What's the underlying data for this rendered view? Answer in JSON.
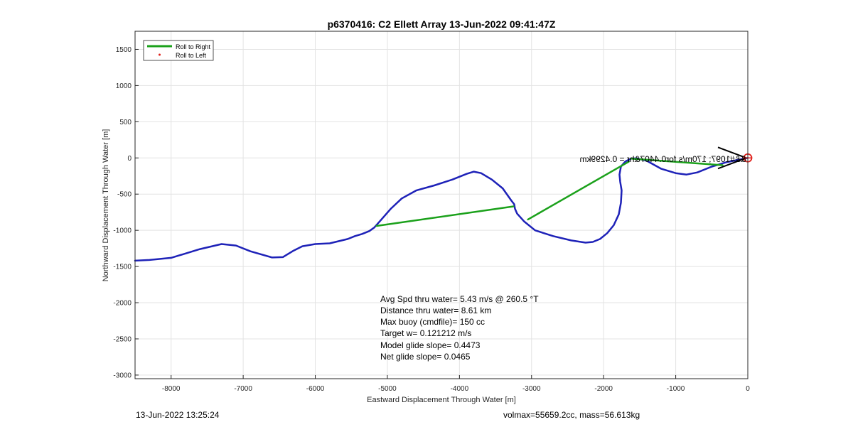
{
  "chart_data": {
    "type": "line",
    "title": "p6370416: C2 Ellett Array 13-Jun-2022 09:41:47Z",
    "xlabel": "Eastward Displacement Through Water [m]",
    "ylabel": "Northward Displacement Through Water [m]",
    "xlim": [
      -8500,
      0
    ],
    "ylim": [
      -3050,
      1750
    ],
    "xticks": [
      -8000,
      -7000,
      -6000,
      -5000,
      -4000,
      -3000,
      -2000,
      -1000,
      0
    ],
    "yticks": [
      -3000,
      -2500,
      -2000,
      -1500,
      -1000,
      -500,
      0,
      500,
      1000,
      1500
    ],
    "grid": true,
    "legend_position": "top-left",
    "legend": [
      {
        "label": "Roll to Right",
        "color": "#1ba11b"
      },
      {
        "label": "Roll to Left",
        "color": "#e0201a"
      }
    ],
    "series": [
      {
        "color": "#1e22b8",
        "x": [
          -8500,
          -8300,
          -8000,
          -7800,
          -7600,
          -7300,
          -7100,
          -6900,
          -6600,
          -6450,
          -6300,
          -6180,
          -6000,
          -5800,
          -5550,
          -5450,
          -5350,
          -5250,
          -5180,
          -5100,
          -4950,
          -4800,
          -4600,
          -4350,
          -4100,
          -3900,
          -3800,
          -3700,
          -3550,
          -3400,
          -3280,
          -3240,
          -3230,
          -3200,
          -3100,
          -2950,
          -2700,
          -2450,
          -2250,
          -2150,
          -2050,
          -1950,
          -1860,
          -1790,
          -1760,
          -1750,
          -1770,
          -1780,
          -1760,
          -1700,
          -1620,
          -1540,
          -1400,
          -1200,
          -1000,
          -850,
          -700,
          -500,
          -300,
          0
        ],
        "y": [
          -1420,
          -1410,
          -1380,
          -1320,
          -1260,
          -1190,
          -1210,
          -1290,
          -1375,
          -1370,
          -1280,
          -1220,
          -1190,
          -1180,
          -1120,
          -1080,
          -1050,
          -1010,
          -960,
          -870,
          -700,
          -560,
          -450,
          -380,
          -300,
          -220,
          -190,
          -210,
          -300,
          -420,
          -590,
          -640,
          -700,
          -770,
          -880,
          -1000,
          -1080,
          -1140,
          -1170,
          -1160,
          -1120,
          -1040,
          -930,
          -780,
          -620,
          -450,
          -330,
          -230,
          -120,
          -50,
          -10,
          -5,
          -40,
          -150,
          -210,
          -230,
          -200,
          -120,
          -60,
          0
        ]
      },
      {
        "color": "#1ba11b",
        "x": [
          -5150,
          -3250
        ],
        "y": [
          -940,
          -670
        ]
      },
      {
        "color": "#1ba11b",
        "x": [
          -3050,
          -1650
        ],
        "y": [
          -850,
          -50
        ]
      },
      {
        "color": "#1ba11b",
        "x": [
          -1620,
          -350
        ],
        "y": [
          -10,
          -100
        ]
      }
    ],
    "marker": {
      "x": 0,
      "y": 0,
      "color": "#e0201a"
    },
    "annotation_mirrored": "&&#1097; 170m/s for0.4407&hr = 0.4299km",
    "info_lines": [
      "Avg Spd thru water=  5.43 m/s @ 260.5 °T",
      "Distance thru water=  8.61 km",
      "Max buoy (cmdfile)= 150 cc",
      "Target w= 0.121212 m/s",
      "Model glide slope= 0.4473",
      "Net glide slope= 0.0465"
    ]
  },
  "footer": {
    "left": "13-Jun-2022 13:25:24",
    "right": "volmax=55659.2cc, mass=56.613kg"
  }
}
